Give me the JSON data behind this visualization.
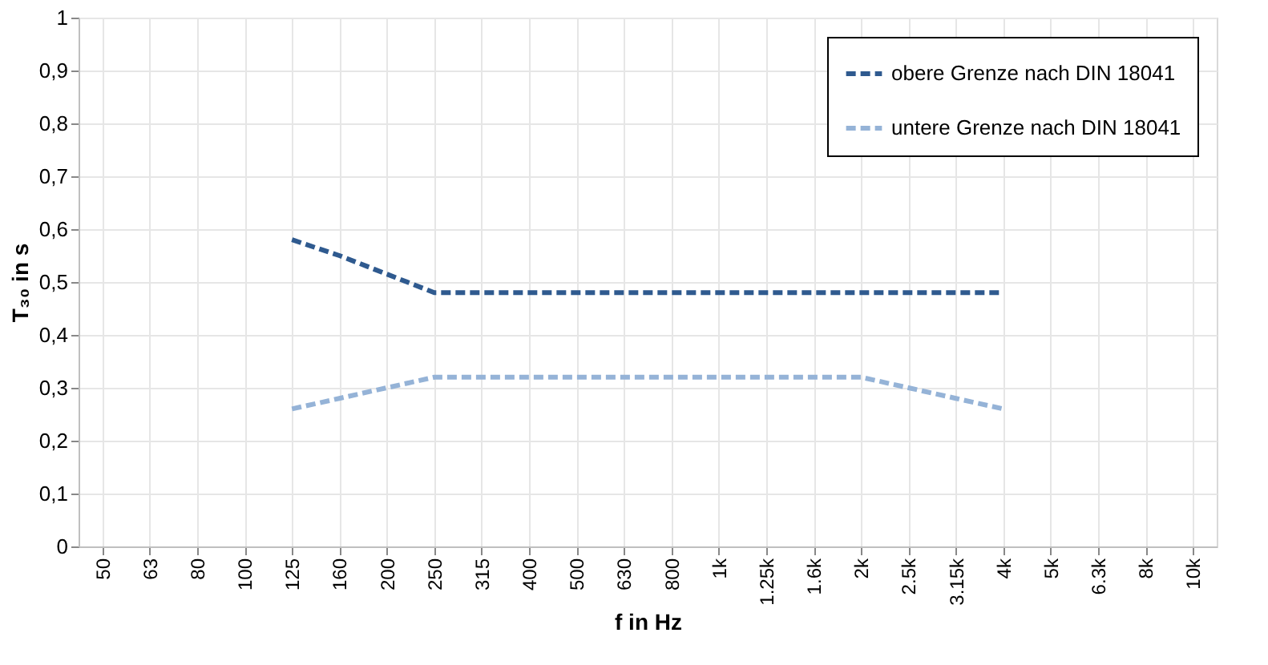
{
  "chart_data": {
    "type": "line",
    "xlabel": "f in Hz",
    "ylabel": "T₃₀ in s",
    "categories": [
      "50",
      "63",
      "80",
      "100",
      "125",
      "160",
      "200",
      "250",
      "315",
      "400",
      "500",
      "630",
      "800",
      "1k",
      "1.25k",
      "1.6k",
      "2k",
      "2.5k",
      "3.15k",
      "4k",
      "5k",
      "6.3k",
      "8k",
      "10k"
    ],
    "series": [
      {
        "name": "obere Grenze nach DIN 18041",
        "color": "#2f5a8f",
        "values": [
          null,
          null,
          null,
          null,
          0.58,
          0.55,
          0.515,
          0.48,
          0.48,
          0.48,
          0.48,
          0.48,
          0.48,
          0.48,
          0.48,
          0.48,
          0.48,
          0.48,
          0.48,
          0.48,
          null,
          null,
          null,
          null
        ]
      },
      {
        "name": "untere Grenze nach DIN 18041",
        "color": "#95b3d7",
        "values": [
          null,
          null,
          null,
          null,
          0.26,
          0.28,
          0.3,
          0.32,
          0.32,
          0.32,
          0.32,
          0.32,
          0.32,
          0.32,
          0.32,
          0.32,
          0.32,
          0.3,
          0.28,
          0.26,
          null,
          null,
          null,
          null
        ]
      }
    ],
    "ylim": [
      0,
      1
    ],
    "yticks": [
      0,
      {
        "value": 0.1,
        "label": "0,1"
      },
      {
        "value": 0.2,
        "label": "0,2"
      },
      {
        "value": 0.3,
        "label": "0,3"
      },
      {
        "value": 0.4,
        "label": "0,4"
      },
      {
        "value": 0.5,
        "label": "0,5"
      },
      {
        "value": 0.6,
        "label": "0,6"
      },
      {
        "value": 0.7,
        "label": "0,7"
      },
      {
        "value": 0.8,
        "label": "0,8"
      },
      {
        "value": 0.9,
        "label": "0,9"
      },
      1
    ],
    "grid": true,
    "legend": "top right",
    "line_style": "dashed",
    "marker": "none"
  }
}
